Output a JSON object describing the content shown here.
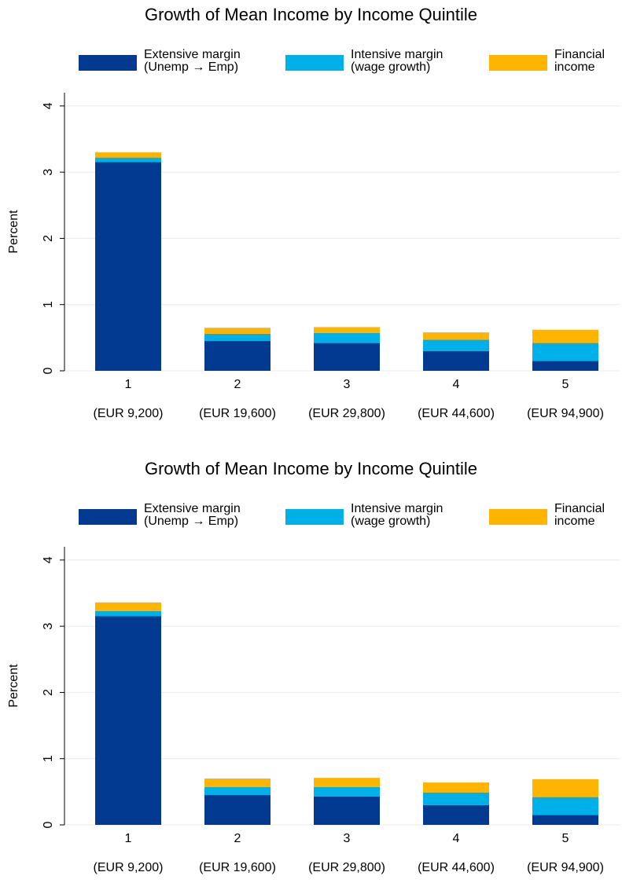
{
  "chart_data": [
    {
      "type": "stacked-bar",
      "title": "Growth of Mean Income by Income Quintile",
      "y_label": "Percent",
      "categories": [
        "1",
        "2",
        "3",
        "4",
        "5"
      ],
      "category_notes": [
        "(EUR 9,200)",
        "(EUR 19,600)",
        "(EUR 29,800)",
        "(EUR 44,600)",
        "(EUR 94,900)"
      ],
      "series": [
        {
          "name": "Extensive margin (Unemp → Emp)",
          "color": "#023a91",
          "values": [
            3.15,
            0.45,
            0.42,
            0.3,
            0.15
          ]
        },
        {
          "name": "Intensive margin (wage growth)",
          "color": "#00b0e8",
          "values": [
            0.07,
            0.11,
            0.15,
            0.17,
            0.27
          ]
        },
        {
          "name": "Financial income",
          "color": "#ffb400",
          "values": [
            0.08,
            0.09,
            0.09,
            0.11,
            0.2
          ]
        }
      ],
      "ylim": [
        0,
        4.2
      ],
      "yticks": [
        0,
        1,
        2,
        3,
        4
      ],
      "grid": true
    },
    {
      "type": "stacked-bar",
      "title": "Growth of Mean Income by Income Quintile",
      "y_label": "Percent",
      "categories": [
        "1",
        "2",
        "3",
        "4",
        "5"
      ],
      "category_notes": [
        "(EUR 9,200)",
        "(EUR 19,600)",
        "(EUR 29,800)",
        "(EUR 44,600)",
        "(EUR 94,900)"
      ],
      "series": [
        {
          "name": "Extensive margin (Unemp → Emp)",
          "color": "#023a91",
          "values": [
            3.15,
            0.45,
            0.43,
            0.3,
            0.15
          ]
        },
        {
          "name": "Intensive margin (wage growth)",
          "color": "#00b0e8",
          "values": [
            0.08,
            0.12,
            0.14,
            0.19,
            0.27
          ]
        },
        {
          "name": "Financial income",
          "color": "#ffb400",
          "values": [
            0.13,
            0.13,
            0.14,
            0.15,
            0.27
          ]
        }
      ],
      "ylim": [
        0,
        4.2
      ],
      "yticks": [
        0,
        1,
        2,
        3,
        4
      ],
      "grid": true
    }
  ]
}
